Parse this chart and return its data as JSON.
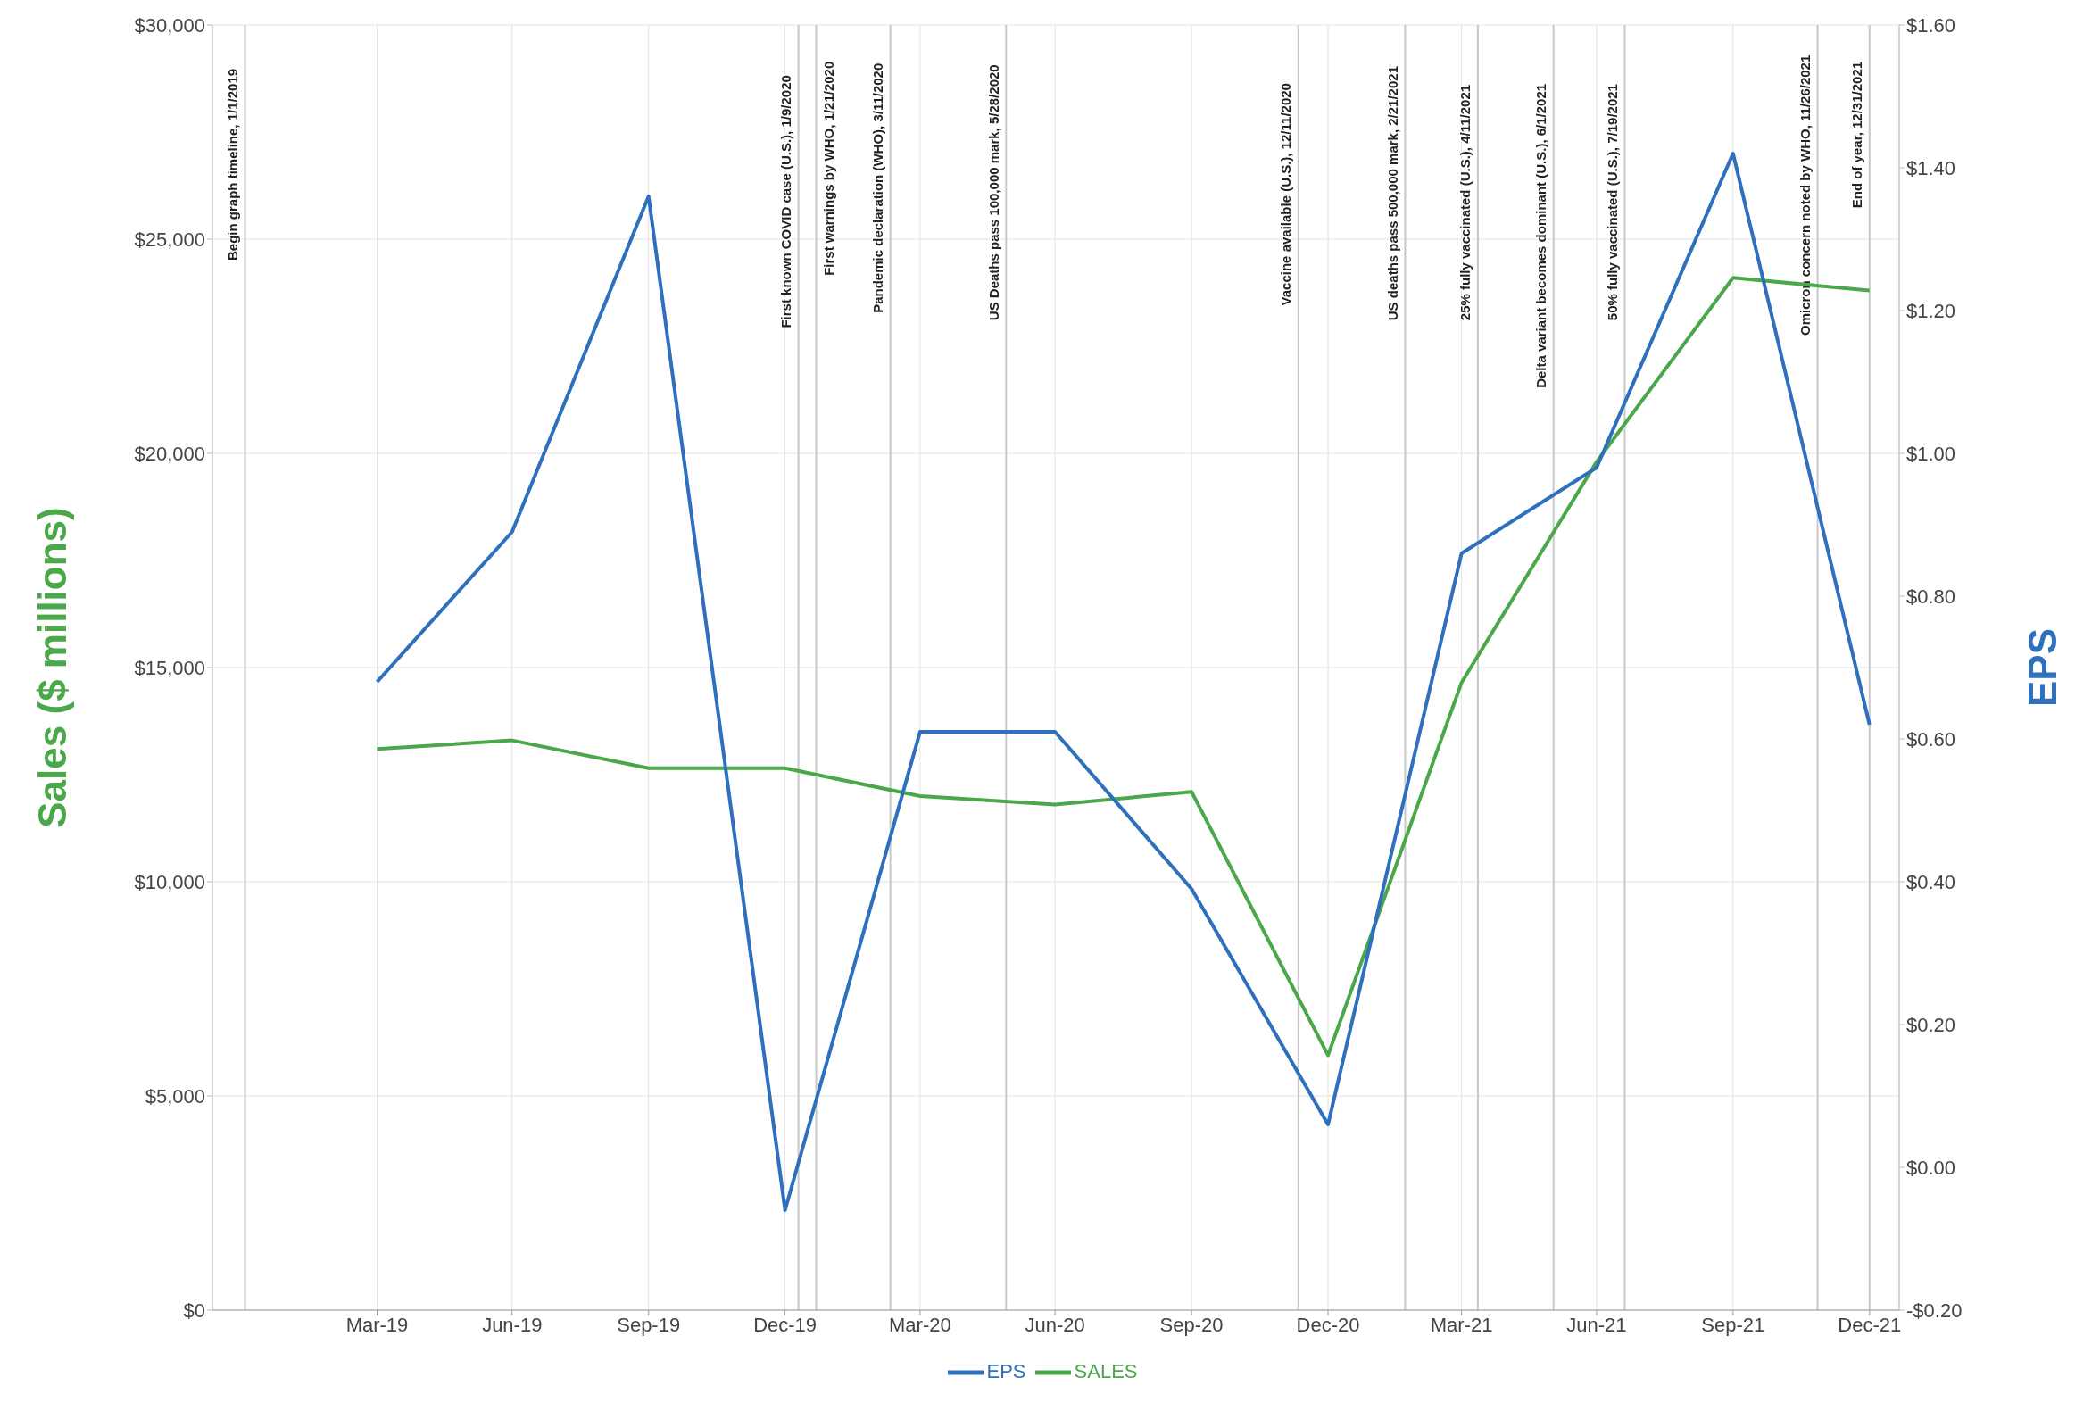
{
  "chart_data": {
    "type": "line",
    "ylabel": "Sales ($ millions)",
    "y2label": "EPS",
    "x": [
      "2019-03-31",
      "2019-06-30",
      "2019-09-30",
      "2019-12-31",
      "2020-03-31",
      "2020-06-30",
      "2020-09-30",
      "2020-12-31",
      "2021-03-31",
      "2021-06-30",
      "2021-09-30",
      "2021-12-31"
    ],
    "xlim": [
      "2018-12-10",
      "2022-01-20"
    ],
    "xticks": [
      {
        "value": "2019-03-31",
        "label": "Mar-19"
      },
      {
        "value": "2019-06-30",
        "label": "Jun-19"
      },
      {
        "value": "2019-09-30",
        "label": "Sep-19"
      },
      {
        "value": "2019-12-31",
        "label": "Dec-19"
      },
      {
        "value": "2020-03-31",
        "label": "Mar-20"
      },
      {
        "value": "2020-06-30",
        "label": "Jun-20"
      },
      {
        "value": "2020-09-30",
        "label": "Sep-20"
      },
      {
        "value": "2020-12-31",
        "label": "Dec-20"
      },
      {
        "value": "2021-03-31",
        "label": "Mar-21"
      },
      {
        "value": "2021-06-30",
        "label": "Jun-21"
      },
      {
        "value": "2021-09-30",
        "label": "Sep-21"
      },
      {
        "value": "2021-12-31",
        "label": "Dec-21"
      }
    ],
    "series": [
      {
        "name": "SALES",
        "color": "#4aa84a",
        "values": [
          13100,
          13300,
          12650,
          12650,
          12000,
          11800,
          12100,
          5950,
          14650,
          19800,
          24100,
          23800
        ]
      },
      {
        "name": "EPS",
        "color": "#2e70bd",
        "axis": "y2",
        "values": [
          0.68,
          0.89,
          1.36,
          -0.06,
          0.61,
          0.61,
          0.39,
          0.06,
          0.86,
          0.98,
          1.42,
          0.62
        ]
      }
    ],
    "ylim": [
      0,
      30000
    ],
    "yticks": [
      {
        "value": 0,
        "label": "$0"
      },
      {
        "value": 5000,
        "label": "$5,000"
      },
      {
        "value": 10000,
        "label": "$10,000"
      },
      {
        "value": 15000,
        "label": "$15,000"
      },
      {
        "value": 20000,
        "label": "$20,000"
      },
      {
        "value": 25000,
        "label": "$25,000"
      },
      {
        "value": 30000,
        "label": "$30,000"
      }
    ],
    "y2lim": [
      -0.2,
      1.6
    ],
    "y2ticks": [
      {
        "value": -0.2,
        "label": "-$0.20"
      },
      {
        "value": 0,
        "label": "$0.00"
      },
      {
        "value": 0.2,
        "label": "$0.20"
      },
      {
        "value": 0.4,
        "label": "$0.40"
      },
      {
        "value": 0.6,
        "label": "$0.60"
      },
      {
        "value": 0.8,
        "label": "$0.80"
      },
      {
        "value": 1.0,
        "label": "$1.00"
      },
      {
        "value": 1.2,
        "label": "$1.20"
      },
      {
        "value": 1.4,
        "label": "$1.40"
      },
      {
        "value": 1.6,
        "label": "$1.60"
      }
    ],
    "ref_lines": [
      {
        "axis": "x",
        "value": "2019-01-01",
        "label": "Begin graph timeline, 1/1/2019",
        "color": "#c8c8c8"
      },
      {
        "axis": "x",
        "value": "2020-01-09",
        "label": "First known COVID case (U.S.), 1/9/2020",
        "color": "#c8c8c8"
      },
      {
        "axis": "x",
        "value": "2020-01-21",
        "label": "First warnings by WHO, 1/21/2020",
        "color": "#c8c8c8"
      },
      {
        "axis": "x",
        "value": "2020-03-11",
        "label": "Pandemic declaration (WHO), 3/11/2020",
        "color": "#c8c8c8"
      },
      {
        "axis": "x",
        "value": "2020-05-28",
        "label": "US Deaths pass 100,000 mark, 5/28/2020",
        "color": "#c8c8c8"
      },
      {
        "axis": "x",
        "value": "2020-12-11",
        "label": "Vaccine available (U.S.), 12/11/2020",
        "color": "#c8c8c8"
      },
      {
        "axis": "x",
        "value": "2021-02-21",
        "label": "US deaths pass 500,000 mark, 2/21/2021",
        "color": "#c8c8c8"
      },
      {
        "axis": "x",
        "value": "2021-04-11",
        "label": "25% fully vaccinated (U.S.), 4/11/2021",
        "color": "#c8c8c8"
      },
      {
        "axis": "x",
        "value": "2021-06-01",
        "label": "Delta variant becomes dominant (U.S.), 6/1/2021",
        "color": "#c8c8c8"
      },
      {
        "axis": "x",
        "value": "2021-07-19",
        "label": "50% fully vaccinated (U.S.), 7/19/2021",
        "color": "#c8c8c8"
      },
      {
        "axis": "x",
        "value": "2021-11-26",
        "label": "Omicron concern noted by WHO, 11/26/2021",
        "color": "#c8c8c8"
      },
      {
        "axis": "x",
        "value": "2021-12-31",
        "label": "End of year, 12/31/2021",
        "color": "#c8c8c8"
      }
    ],
    "grid": true,
    "legend": "bottom",
    "marker": "none",
    "line_style": "solid"
  }
}
